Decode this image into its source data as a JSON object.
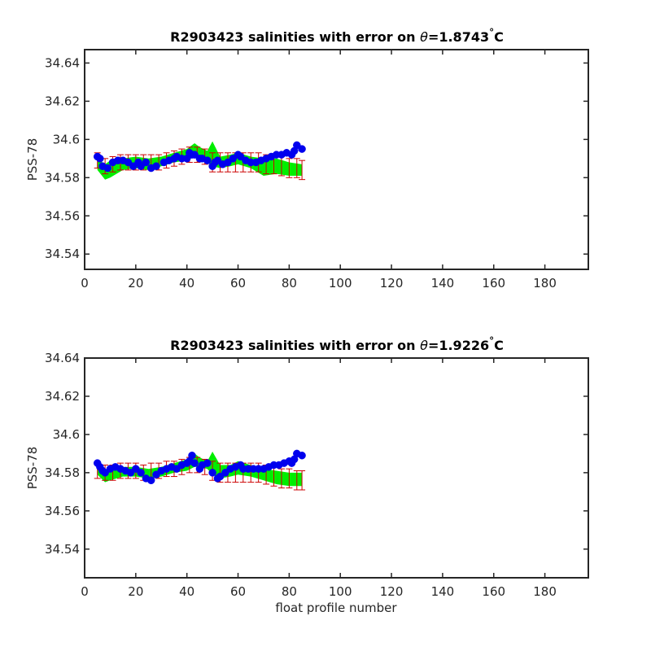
{
  "chart_data": [
    {
      "type": "scatter",
      "title_prefix": "R2903423 salinities with error on ",
      "title_theta": "θ",
      "title_suffix": "=1.8743",
      "title_degree": "°",
      "title_unit": "C",
      "xlabel": "",
      "ylabel": "PSS-78",
      "xlim": [
        0,
        197
      ],
      "ylim": [
        34.532,
        34.647
      ],
      "xticks": [
        "0",
        "20",
        "40",
        "60",
        "80",
        "100",
        "120",
        "140",
        "160",
        "180"
      ],
      "yticks": [
        "34.54",
        "34.56",
        "34.58",
        "34.6",
        "34.62",
        "34.64"
      ],
      "series": [
        {
          "style": "green error band",
          "color": "#00ee00",
          "x": [
            5,
            8,
            10,
            15,
            20,
            25,
            30,
            35,
            40,
            43,
            45,
            48,
            50,
            53,
            57,
            60,
            65,
            70,
            75,
            80,
            85
          ],
          "upper": [
            34.59,
            34.587,
            34.589,
            34.59,
            34.591,
            34.59,
            34.591,
            34.593,
            34.595,
            34.598,
            34.596,
            34.594,
            34.599,
            34.591,
            34.592,
            34.593,
            34.591,
            34.59,
            34.59,
            34.588,
            34.587
          ],
          "lower": [
            34.584,
            34.579,
            34.58,
            34.584,
            34.585,
            34.584,
            34.586,
            34.588,
            34.589,
            34.591,
            34.59,
            34.588,
            34.586,
            34.585,
            34.586,
            34.587,
            34.585,
            34.581,
            34.582,
            34.581,
            34.581
          ]
        },
        {
          "style": "red error bars",
          "color": "#cc0000",
          "x": [
            5,
            8,
            11,
            14,
            17,
            20,
            23,
            26,
            29,
            32,
            35,
            38,
            41,
            44,
            47,
            50,
            53,
            56,
            59,
            62,
            65,
            68,
            71,
            74,
            77,
            80,
            83,
            85
          ],
          "center": [
            34.589,
            34.586,
            34.587,
            34.588,
            34.588,
            34.588,
            34.588,
            34.588,
            34.588,
            34.589,
            34.59,
            34.591,
            34.592,
            34.592,
            34.591,
            34.588,
            34.588,
            34.588,
            34.588,
            34.588,
            34.588,
            34.588,
            34.587,
            34.587,
            34.586,
            34.585,
            34.585,
            34.584
          ],
          "error": [
            0.004,
            0.004,
            0.004,
            0.004,
            0.004,
            0.004,
            0.004,
            0.004,
            0.004,
            0.004,
            0.004,
            0.004,
            0.004,
            0.004,
            0.004,
            0.005,
            0.005,
            0.005,
            0.005,
            0.005,
            0.005,
            0.005,
            0.005,
            0.005,
            0.005,
            0.005,
            0.005,
            0.005
          ]
        },
        {
          "style": "blue markers",
          "color": "#0000ee",
          "x": [
            5,
            6,
            7,
            9,
            11,
            13,
            15,
            17,
            19,
            21,
            22,
            24,
            26,
            28,
            31,
            33,
            35,
            36,
            38,
            40,
            41,
            42,
            43,
            45,
            46,
            48,
            50,
            51,
            52,
            54,
            56,
            58,
            60,
            61,
            63,
            65,
            67,
            69,
            71,
            73,
            75,
            77,
            79,
            81,
            82,
            83,
            85
          ],
          "y": [
            34.591,
            34.59,
            34.586,
            34.585,
            34.588,
            34.589,
            34.589,
            34.588,
            34.586,
            34.588,
            34.586,
            34.588,
            34.585,
            34.586,
            34.588,
            34.589,
            34.59,
            34.591,
            34.59,
            34.59,
            34.593,
            34.592,
            34.592,
            34.59,
            34.59,
            34.589,
            34.586,
            34.588,
            34.589,
            34.587,
            34.588,
            34.59,
            34.592,
            34.591,
            34.589,
            34.588,
            34.588,
            34.589,
            34.59,
            34.591,
            34.592,
            34.592,
            34.593,
            34.592,
            34.594,
            34.597,
            34.595
          ]
        }
      ]
    },
    {
      "type": "scatter",
      "title_prefix": "R2903423 salinities with error on ",
      "title_theta": "θ",
      "title_suffix": "=1.9226",
      "title_degree": "°",
      "title_unit": "C",
      "xlabel": "float profile number",
      "ylabel": "PSS-78",
      "xlim": [
        0,
        197
      ],
      "ylim": [
        34.525,
        34.64
      ],
      "xticks": [
        "0",
        "20",
        "40",
        "60",
        "80",
        "100",
        "120",
        "140",
        "160",
        "180"
      ],
      "yticks": [
        "34.54",
        "34.56",
        "34.58",
        "34.6",
        "34.62",
        "34.64"
      ],
      "series": [
        {
          "style": "green error band",
          "color": "#00ee00",
          "x": [
            5,
            8,
            10,
            15,
            20,
            25,
            30,
            35,
            40,
            43,
            45,
            48,
            50,
            53,
            57,
            60,
            65,
            70,
            75,
            80,
            85
          ],
          "upper": [
            34.583,
            34.581,
            34.582,
            34.583,
            34.583,
            34.582,
            34.583,
            34.585,
            34.587,
            34.59,
            34.588,
            34.586,
            34.591,
            34.584,
            34.584,
            34.586,
            34.584,
            34.582,
            34.581,
            34.58,
            34.58
          ],
          "lower": [
            34.579,
            34.575,
            34.576,
            34.578,
            34.578,
            34.577,
            34.578,
            34.58,
            34.581,
            34.583,
            34.583,
            34.582,
            34.579,
            34.577,
            34.578,
            34.579,
            34.578,
            34.576,
            34.574,
            34.573,
            34.573
          ]
        },
        {
          "style": "red error bars",
          "color": "#cc0000",
          "x": [
            5,
            8,
            11,
            14,
            17,
            20,
            23,
            26,
            29,
            32,
            35,
            38,
            41,
            44,
            47,
            50,
            53,
            56,
            59,
            62,
            65,
            68,
            71,
            74,
            77,
            80,
            83,
            85
          ],
          "center": [
            34.581,
            34.58,
            34.58,
            34.581,
            34.581,
            34.581,
            34.58,
            34.581,
            34.581,
            34.582,
            34.582,
            34.583,
            34.584,
            34.584,
            34.583,
            34.581,
            34.58,
            34.58,
            34.58,
            34.58,
            34.58,
            34.58,
            34.579,
            34.578,
            34.577,
            34.577,
            34.576,
            34.576
          ],
          "error": [
            0.004,
            0.004,
            0.004,
            0.004,
            0.004,
            0.004,
            0.004,
            0.004,
            0.004,
            0.004,
            0.004,
            0.004,
            0.004,
            0.004,
            0.004,
            0.005,
            0.005,
            0.005,
            0.005,
            0.005,
            0.005,
            0.005,
            0.005,
            0.005,
            0.005,
            0.005,
            0.005,
            0.005
          ]
        },
        {
          "style": "blue markers",
          "color": "#0000ee",
          "x": [
            5,
            6,
            7,
            8,
            10,
            12,
            14,
            16,
            18,
            20,
            22,
            24,
            26,
            28,
            30,
            32,
            34,
            36,
            38,
            40,
            41,
            42,
            43,
            45,
            46,
            48,
            50,
            52,
            53,
            55,
            57,
            59,
            61,
            62,
            64,
            66,
            68,
            70,
            72,
            74,
            76,
            78,
            80,
            81,
            82,
            83,
            85
          ],
          "y": [
            34.585,
            34.583,
            34.581,
            34.58,
            34.582,
            34.583,
            34.582,
            34.581,
            34.58,
            34.582,
            34.58,
            34.577,
            34.576,
            34.579,
            34.581,
            34.582,
            34.583,
            34.582,
            34.584,
            34.585,
            34.586,
            34.589,
            34.585,
            34.582,
            34.584,
            34.585,
            34.58,
            34.577,
            34.578,
            34.58,
            34.582,
            34.583,
            34.584,
            34.582,
            34.582,
            34.582,
            34.582,
            34.582,
            34.583,
            34.584,
            34.584,
            34.585,
            34.586,
            34.585,
            34.587,
            34.59,
            34.589
          ]
        }
      ]
    }
  ]
}
